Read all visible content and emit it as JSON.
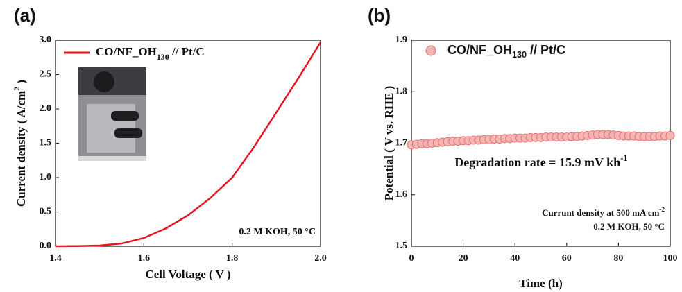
{
  "chart_data": [
    {
      "type": "line",
      "panel_label": "(a)",
      "xlabel": "Cell Voltage ( V )",
      "ylabel": "Current density ( A/cm2 )",
      "x": [
        1.4,
        1.45,
        1.5,
        1.55,
        1.6,
        1.65,
        1.7,
        1.75,
        1.8,
        1.85,
        1.9,
        1.95,
        2.0
      ],
      "series": [
        {
          "name": "CO/NF_OH130 // Pt/C",
          "color": "#e8141c",
          "values": [
            0.0,
            0.003,
            0.01,
            0.04,
            0.12,
            0.26,
            0.45,
            0.7,
            1.0,
            1.45,
            1.95,
            2.45,
            2.97
          ]
        }
      ],
      "xlim": [
        1.4,
        2.0
      ],
      "xticks": [
        1.4,
        1.6,
        1.8,
        {
          "value": 2.0,
          "label": "2.0"
        }
      ],
      "ylim": [
        0,
        3.0
      ],
      "yticks": [
        {
          "value": 0,
          "label": "0.0"
        },
        0.5,
        {
          "value": 1,
          "label": "1.0"
        },
        1.5,
        {
          "value": 2,
          "label": "2.0"
        },
        2.5,
        {
          "value": 3,
          "label": "3.0"
        }
      ],
      "annotations": [
        "0.2 M KOH, 50 °C"
      ],
      "legend": "upper left"
    },
    {
      "type": "scatter",
      "panel_label": "(b)",
      "xlabel": "Time (h)",
      "ylabel": "Potential ( V vs. RHE )",
      "x": [
        0,
        2,
        4,
        6,
        8,
        10,
        12,
        14,
        16,
        18,
        20,
        22,
        24,
        26,
        28,
        30,
        32,
        34,
        36,
        38,
        40,
        42,
        44,
        46,
        48,
        50,
        52,
        54,
        56,
        58,
        60,
        62,
        64,
        66,
        68,
        70,
        72,
        74,
        76,
        78,
        80,
        82,
        84,
        86,
        88,
        90,
        92,
        94,
        96,
        98,
        100
      ],
      "series": [
        {
          "name": "CO/NF_OH130 // Pt/C",
          "color": "#f5b5b5",
          "values": [
            1.697,
            1.698,
            1.699,
            1.699,
            1.7,
            1.701,
            1.702,
            1.703,
            1.704,
            1.704,
            1.705,
            1.705,
            1.706,
            1.706,
            1.707,
            1.707,
            1.708,
            1.708,
            1.709,
            1.709,
            1.71,
            1.71,
            1.71,
            1.711,
            1.711,
            1.711,
            1.712,
            1.712,
            1.712,
            1.712,
            1.712,
            1.713,
            1.713,
            1.714,
            1.715,
            1.716,
            1.717,
            1.717,
            1.717,
            1.716,
            1.715,
            1.714,
            1.714,
            1.714,
            1.713,
            1.713,
            1.713,
            1.713,
            1.714,
            1.714,
            1.715
          ]
        }
      ],
      "xlim": [
        0,
        100
      ],
      "xticks": [
        0,
        20,
        40,
        60,
        80,
        100
      ],
      "ylim": [
        1.5,
        1.9
      ],
      "yticks": [
        1.5,
        1.6,
        1.7,
        1.8,
        1.9
      ],
      "annotations": [
        "Degradation rate = 15.9 mV kh-1",
        "Currunt density at 500 mA cm-2",
        "0.2 M KOH, 50 °C"
      ],
      "legend": "upper left"
    }
  ]
}
